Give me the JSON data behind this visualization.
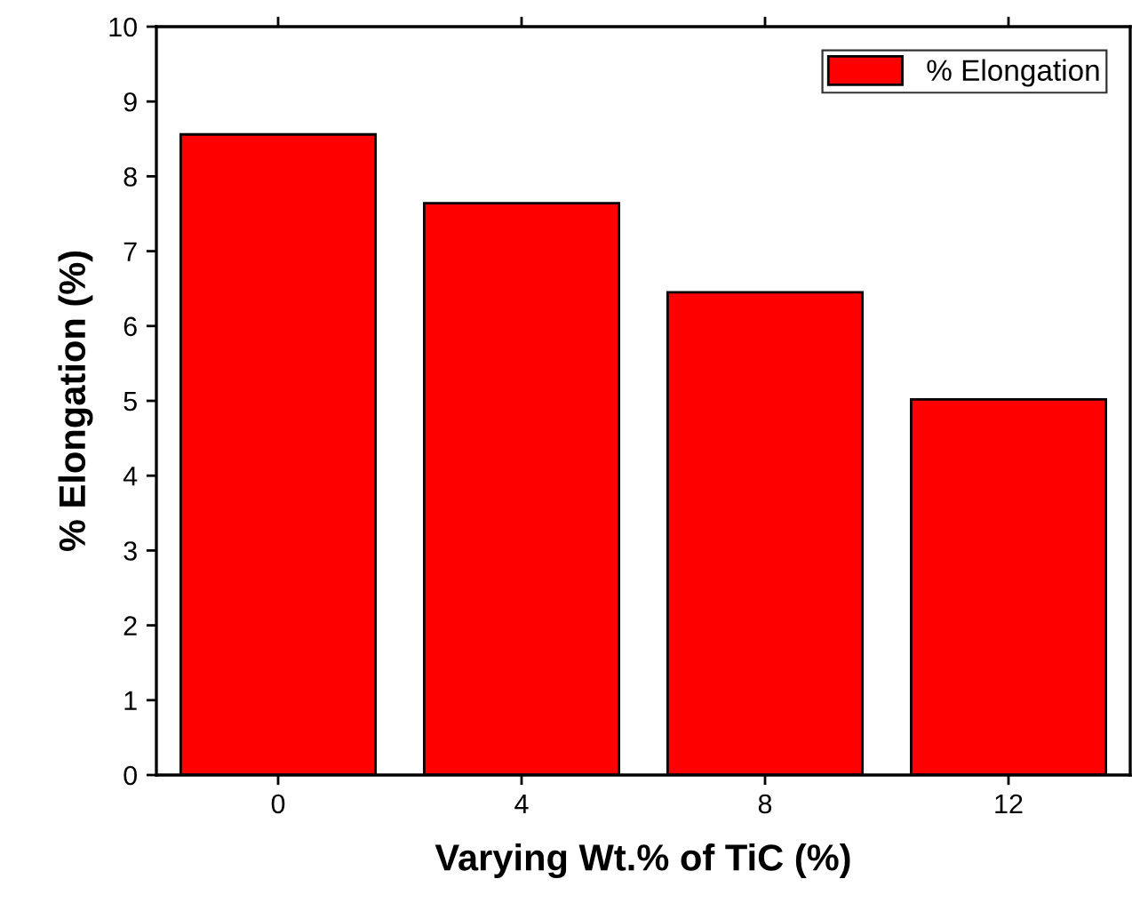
{
  "chart_data": {
    "type": "bar",
    "xlabel": "Varying Wt.% of TiC (%)",
    "ylabel": "% Elongation (%)",
    "categories": [
      "0",
      "4",
      "8",
      "12"
    ],
    "series": [
      {
        "name": "% Elongation",
        "color": "#ff0000",
        "values": [
          8.56,
          7.64,
          6.45,
          5.02
        ]
      }
    ],
    "ylim": [
      0,
      10
    ],
    "yticks": [
      0,
      1,
      2,
      3,
      4,
      5,
      6,
      7,
      8,
      9,
      10
    ],
    "grid": false,
    "legend": "top right"
  }
}
